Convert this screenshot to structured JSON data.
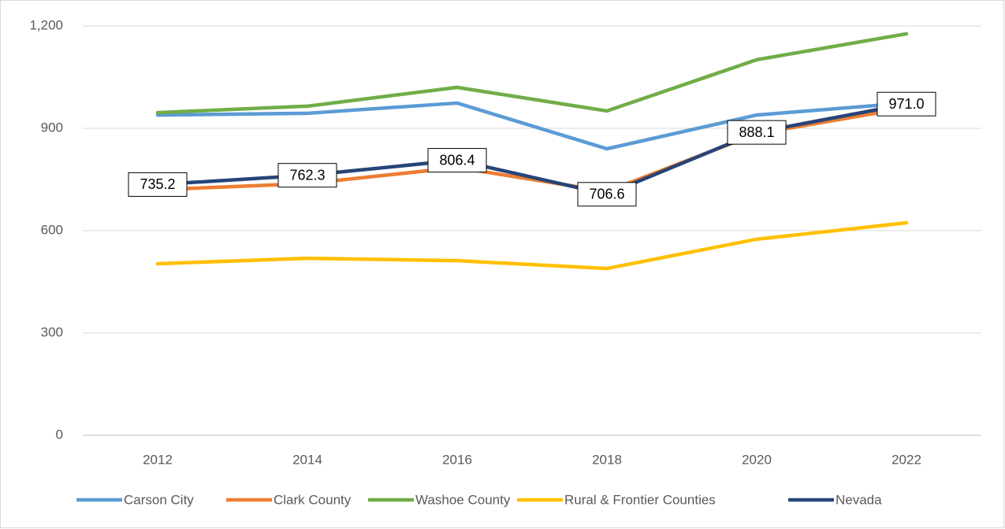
{
  "chart_data": {
    "type": "line",
    "categories": [
      "2012",
      "2014",
      "2016",
      "2018",
      "2020",
      "2022"
    ],
    "series": [
      {
        "name": "Carson City",
        "color": "#5b9bd5",
        "values": [
          939,
          944,
          974,
          840,
          939,
          974
        ]
      },
      {
        "name": "Clark County",
        "color": "#ed7d31",
        "values": [
          720,
          738,
          785,
          715,
          884,
          960
        ]
      },
      {
        "name": "Washoe County",
        "color": "#70ad47",
        "values": [
          946,
          965,
          1020,
          951,
          1101,
          1177
        ]
      },
      {
        "name": "Rural & Frontier Counties",
        "color": "#ffc000",
        "values": [
          503,
          519,
          512,
          489,
          575,
          623
        ]
      },
      {
        "name": "Nevada",
        "color": "#264478",
        "values": [
          735.2,
          762.3,
          806.4,
          706.6,
          888.1,
          971.0
        ],
        "value_labels": [
          "735.2",
          "762.3",
          "806.4",
          "706.6",
          "888.1",
          "971.0"
        ]
      }
    ],
    "ylim": [
      0,
      1200
    ],
    "yticks": [
      0,
      300,
      600,
      900,
      {
        "value": 1200,
        "label": "1,200"
      }
    ],
    "grid": true,
    "legend": "bottom"
  }
}
